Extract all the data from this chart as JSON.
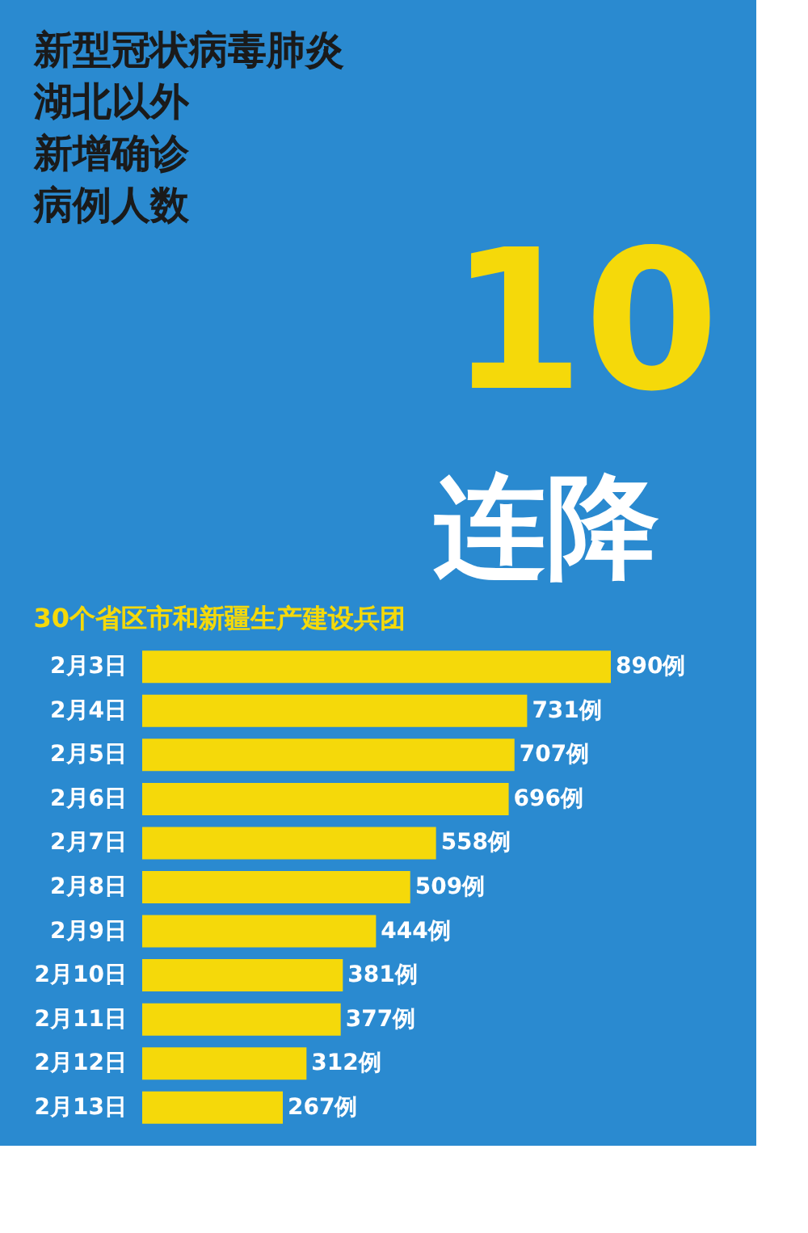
{
  "chart_data": {
    "type": "bar",
    "orientation": "horizontal",
    "title": "新型冠状病毒肺炎湖北以外新增确诊病例人数",
    "subtitle": "30个省区市和新疆生产建设兵团",
    "annotations": [
      "10",
      "连降"
    ],
    "categories": [
      "2月3日",
      "2月4日",
      "2月5日",
      "2月6日",
      "2月7日",
      "2月8日",
      "2月9日",
      "2月10日",
      "2月11日",
      "2月12日",
      "2月13日"
    ],
    "values": [
      890,
      731,
      707,
      696,
      558,
      509,
      444,
      381,
      377,
      312,
      267
    ],
    "value_labels": [
      "890例",
      "731例",
      "707例",
      "696例",
      "558例",
      "509例",
      "444例",
      "381例",
      "377例",
      "312例",
      "267例"
    ],
    "color": "#f5d90a",
    "grid": false
  }
}
